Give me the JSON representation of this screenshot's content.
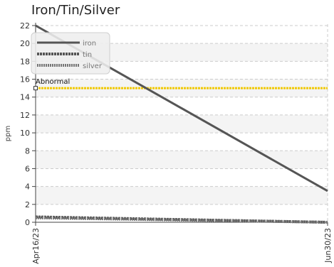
{
  "chart_data": {
    "type": "line",
    "title": "Iron/Tin/Silver",
    "xlabel": "",
    "ylabel": "ppm",
    "x_ticks": [
      "Apr16/23",
      "Jun30/23"
    ],
    "ylim": [
      0,
      22
    ],
    "y_ticks": [
      0,
      2,
      4,
      6,
      8,
      10,
      12,
      14,
      16,
      18,
      20,
      22
    ],
    "grid": true,
    "legend_position": "top-left",
    "series": [
      {
        "name": "iron",
        "x": [
          "Apr16/23",
          "Jun30/23"
        ],
        "values": [
          22,
          3.5
        ],
        "color": "#555555",
        "style": "solid"
      },
      {
        "name": "tin",
        "x": [
          "Apr16/23",
          "Jun30/23"
        ],
        "values": [
          0.6,
          0.0
        ],
        "color": "#555555",
        "style": "dashed"
      },
      {
        "name": "silver",
        "x": [
          "Apr16/23",
          "Jun30/23"
        ],
        "values": [
          0.5,
          0.0
        ],
        "color": "#777777",
        "style": "dotted"
      }
    ],
    "threshold": {
      "label": "Abnormal",
      "value": 15,
      "color": "#f0c800"
    }
  }
}
